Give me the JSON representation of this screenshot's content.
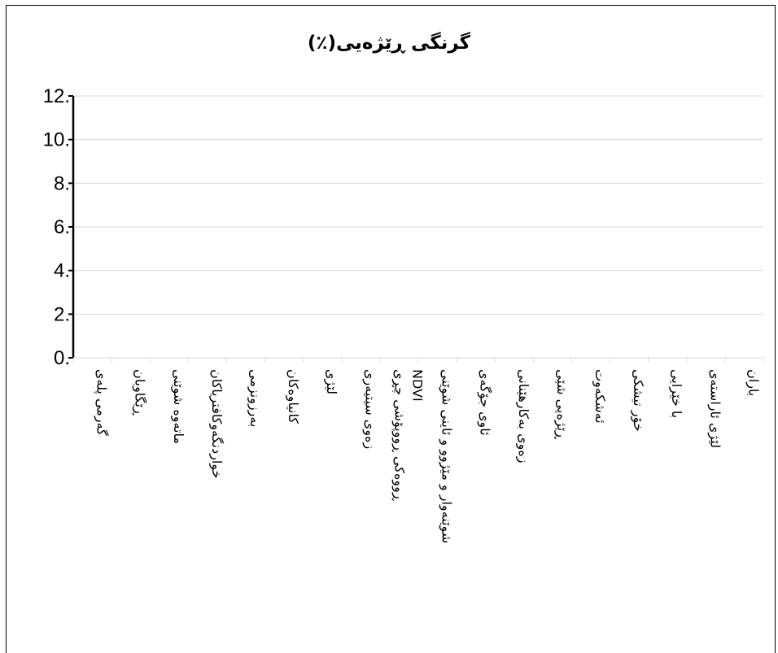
{
  "chart_data": {
    "type": "bar",
    "title": "(٪)گرنگی ڕێژەیی",
    "xlabel": "",
    "ylabel": "",
    "ylim": [
      0,
      12
    ],
    "y_ticks": [
      "12.",
      "10.",
      "8.",
      "6.",
      "4.",
      "2.",
      "0."
    ],
    "grid": true,
    "categories": [
      [
        "گەرمی پلەی"
      ],
      [
        "ڕێگاوبان"
      ],
      [
        "ماتەوە شوێنی"
      ],
      [
        "خواردنگەوکافتریاکان"
      ],
      [
        "بەرزونزمی"
      ],
      [
        "کانیاوەکان"
      ],
      [
        "لێژی"
      ],
      [
        "زەوی سیتیەری"
      ],
      [
        "NDVI",
        "ڕووەکی ڕووپۆشی چڕی"
      ],
      [
        "شوێنەوار و مێژوو و ئاینی شوێنی"
      ],
      [
        "ئاوی جۆگەی"
      ],
      [
        "زەوی بەکارهێنانی"
      ],
      [
        "ڕێژەیی شێی"
      ],
      [
        "ئەشکەوت"
      ],
      [
        "خۆر تیشکی"
      ],
      [
        "با خێرایی"
      ],
      [
        "لێژی ئاراستەی"
      ],
      [
        "باران"
      ]
    ],
    "values": [
      null,
      null,
      null,
      null,
      null,
      null,
      null,
      null,
      null,
      null,
      null,
      null,
      null,
      null,
      null,
      null,
      null,
      null
    ]
  }
}
